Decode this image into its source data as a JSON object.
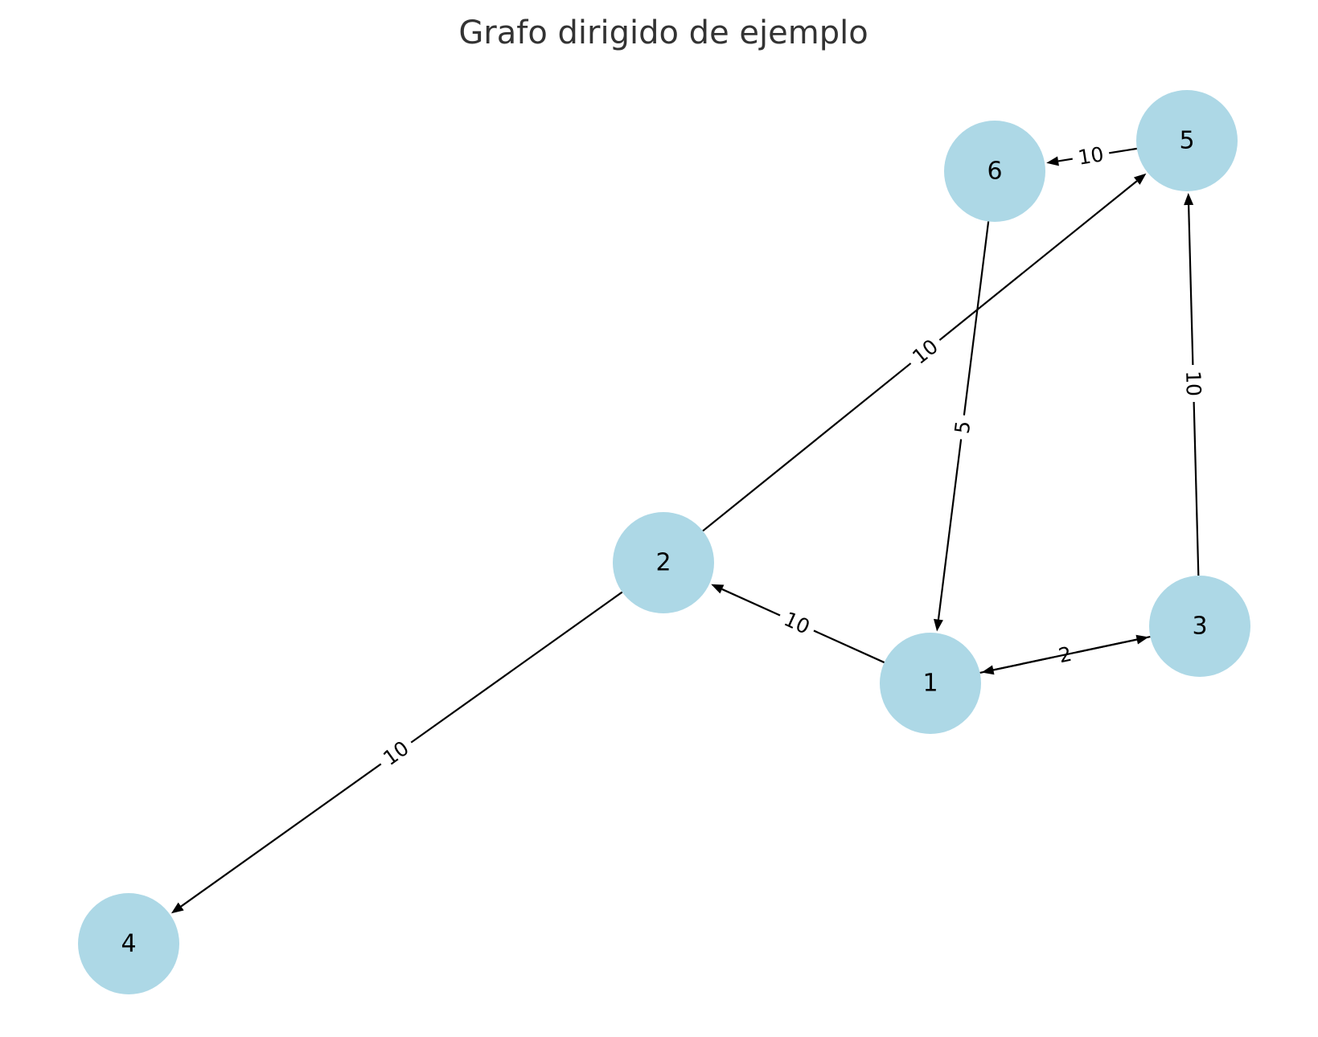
{
  "title": "Grafo dirigido de ejemplo",
  "colors": {
    "node_fill": "#add8e6",
    "edge": "#000000",
    "title": "#333333"
  },
  "nodes": [
    {
      "id": "1",
      "label": "1"
    },
    {
      "id": "2",
      "label": "2"
    },
    {
      "id": "3",
      "label": "3"
    },
    {
      "id": "4",
      "label": "4"
    },
    {
      "id": "5",
      "label": "5"
    },
    {
      "id": "6",
      "label": "6"
    }
  ],
  "edges": [
    {
      "source": "1",
      "target": "2",
      "weight": "10"
    },
    {
      "source": "1",
      "target": "3",
      "weight": "2"
    },
    {
      "source": "3",
      "target": "1",
      "weight": "2"
    },
    {
      "source": "2",
      "target": "5",
      "weight": "10"
    },
    {
      "source": "2",
      "target": "4",
      "weight": "10"
    },
    {
      "source": "3",
      "target": "5",
      "weight": "10"
    },
    {
      "source": "5",
      "target": "6",
      "weight": "10"
    },
    {
      "source": "6",
      "target": "1",
      "weight": "5"
    }
  ]
}
